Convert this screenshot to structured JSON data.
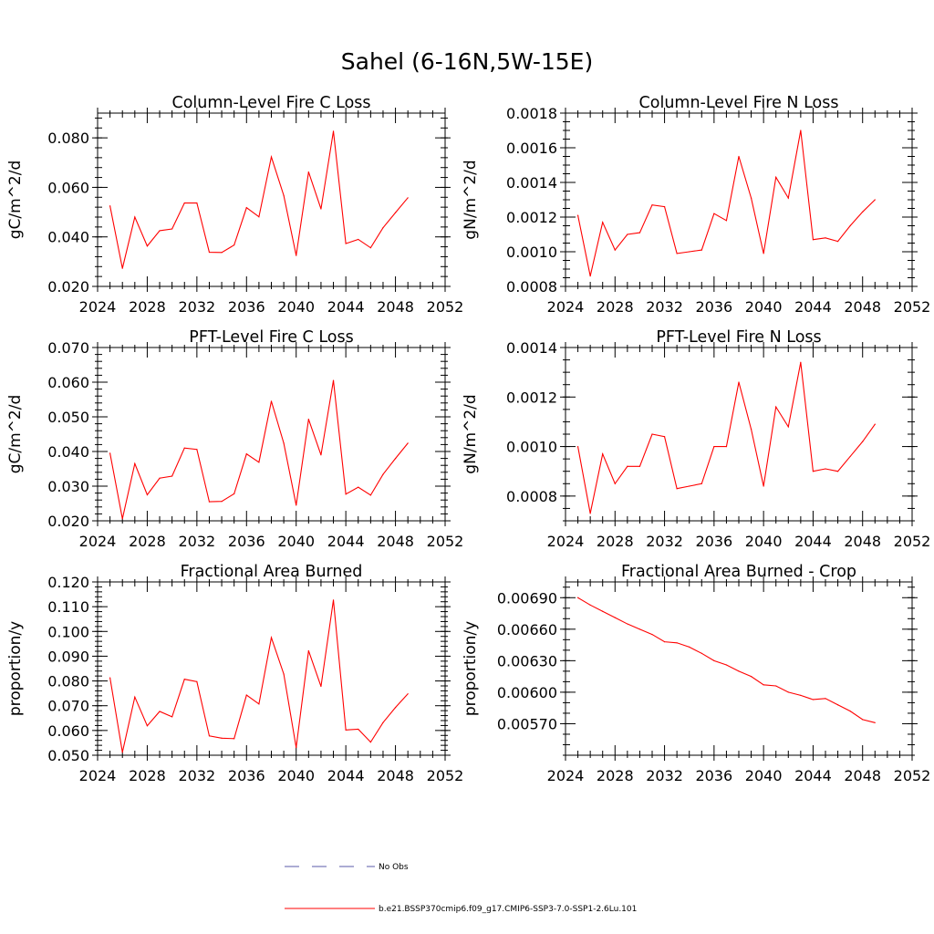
{
  "figure": {
    "title": "Sahel (6-16N,5W-15E)"
  },
  "legend": {
    "entries": [
      {
        "label": "No Obs",
        "color": "#5a5aa8",
        "style": "dashed"
      },
      {
        "label": "b.e21.BSSP370cmip6.f09_g17.CMIP6-SSP3-7.0-SSP1-2.6Lu.101",
        "color": "#ff0000",
        "style": "solid"
      }
    ]
  },
  "chart_data": [
    {
      "type": "line",
      "title": "Column-Level Fire C Loss",
      "ylabel": "gC/m^2/d",
      "xlim": [
        2024,
        2052
      ],
      "ylim": [
        0.02,
        0.09
      ],
      "xticks": [
        2024,
        2028,
        2032,
        2036,
        2040,
        2044,
        2048,
        2052
      ],
      "yticks": [
        0.02,
        0.04,
        0.06,
        0.08
      ],
      "ytick_labels": [
        "0.020",
        "0.040",
        "0.060",
        "0.080"
      ],
      "y_minor_step": 0.004,
      "series": [
        {
          "name": "b.e21.BSSP370cmip6.f09_g17.CMIP6-SSP3-7.0-SSP1-2.6Lu.101",
          "color": "#ff0000",
          "x": [
            2025,
            2026,
            2027,
            2028,
            2029,
            2030,
            2031,
            2032,
            2033,
            2034,
            2035,
            2036,
            2037,
            2038,
            2039,
            2040,
            2041,
            2042,
            2043,
            2044,
            2045,
            2046,
            2047,
            2048,
            2049
          ],
          "y": [
            0.0525,
            0.0273,
            0.048,
            0.0363,
            0.0425,
            0.0432,
            0.0537,
            0.0537,
            0.0338,
            0.0337,
            0.0367,
            0.0518,
            0.0481,
            0.0723,
            0.0567,
            0.0325,
            0.0662,
            0.0513,
            0.0827,
            0.0373,
            0.039,
            0.0356,
            0.0437,
            0.0498,
            0.0558
          ]
        }
      ]
    },
    {
      "type": "line",
      "title": "Column-Level Fire N Loss",
      "ylabel": "gN/m^2/d",
      "xlim": [
        2024,
        2052
      ],
      "ylim": [
        0.0008,
        0.0018
      ],
      "xticks": [
        2024,
        2028,
        2032,
        2036,
        2040,
        2044,
        2048,
        2052
      ],
      "yticks": [
        0.0008,
        0.001,
        0.0012,
        0.0014,
        0.0016,
        0.0018
      ],
      "ytick_labels": [
        "0.0008",
        "0.0010",
        "0.0012",
        "0.0014",
        "0.0016",
        "0.0018"
      ],
      "y_minor_step": 5e-05,
      "series": [
        {
          "name": "b.e21.BSSP370cmip6.f09_g17.CMIP6-SSP3-7.0-SSP1-2.6Lu.101",
          "color": "#ff0000",
          "x": [
            2025,
            2026,
            2027,
            2028,
            2029,
            2030,
            2031,
            2032,
            2033,
            2034,
            2035,
            2036,
            2037,
            2038,
            2039,
            2040,
            2041,
            2042,
            2043,
            2044,
            2045,
            2046,
            2047,
            2048,
            2049
          ],
          "y": [
            0.00121,
            0.00086,
            0.00117,
            0.00101,
            0.0011,
            0.00111,
            0.00127,
            0.00126,
            0.00099,
            0.001,
            0.00101,
            0.00122,
            0.00118,
            0.00155,
            0.00131,
            0.00099,
            0.00143,
            0.00131,
            0.0017,
            0.00107,
            0.00108,
            0.00106,
            0.00115,
            0.00123,
            0.0013
          ]
        }
      ]
    },
    {
      "type": "line",
      "title": "PFT-Level Fire C Loss",
      "ylabel": "gC/m^2/d",
      "xlim": [
        2024,
        2052
      ],
      "ylim": [
        0.02,
        0.07
      ],
      "xticks": [
        2024,
        2028,
        2032,
        2036,
        2040,
        2044,
        2048,
        2052
      ],
      "yticks": [
        0.02,
        0.03,
        0.04,
        0.05,
        0.06,
        0.07
      ],
      "ytick_labels": [
        "0.020",
        "0.030",
        "0.040",
        "0.050",
        "0.060",
        "0.070"
      ],
      "y_minor_step": 0.002,
      "series": [
        {
          "name": "b.e21.BSSP370cmip6.f09_g17.CMIP6-SSP3-7.0-SSP1-2.6Lu.101",
          "color": "#ff0000",
          "x": [
            2025,
            2026,
            2027,
            2028,
            2029,
            2030,
            2031,
            2032,
            2033,
            2034,
            2035,
            2036,
            2037,
            2038,
            2039,
            2040,
            2041,
            2042,
            2043,
            2044,
            2045,
            2046,
            2047,
            2048,
            2049
          ],
          "y": [
            0.0395,
            0.0206,
            0.0365,
            0.0275,
            0.0323,
            0.0329,
            0.041,
            0.0406,
            0.0255,
            0.0256,
            0.0278,
            0.0393,
            0.0369,
            0.0545,
            0.0424,
            0.0245,
            0.0493,
            0.039,
            0.0605,
            0.0277,
            0.0297,
            0.0274,
            0.0334,
            0.038,
            0.0424
          ]
        }
      ]
    },
    {
      "type": "line",
      "title": "PFT-Level Fire N Loss",
      "ylabel": "gN/m^2/d",
      "xlim": [
        2024,
        2052
      ],
      "ylim": [
        0.0007,
        0.0014
      ],
      "xticks": [
        2024,
        2028,
        2032,
        2036,
        2040,
        2044,
        2048,
        2052
      ],
      "yticks": [
        0.0008,
        0.001,
        0.0012,
        0.0014
      ],
      "ytick_labels": [
        "0.0008",
        "0.0010",
        "0.0012",
        "0.0014"
      ],
      "y_minor_step": 5e-05,
      "series": [
        {
          "name": "b.e21.BSSP370cmip6.f09_g17.CMIP6-SSP3-7.0-SSP1-2.6Lu.101",
          "color": "#ff0000",
          "x": [
            2025,
            2026,
            2027,
            2028,
            2029,
            2030,
            2031,
            2032,
            2033,
            2034,
            2035,
            2036,
            2037,
            2038,
            2039,
            2040,
            2041,
            2042,
            2043,
            2044,
            2045,
            2046,
            2047,
            2048,
            2049
          ],
          "y": [
            0.001,
            0.00073,
            0.00097,
            0.00085,
            0.00092,
            0.00092,
            0.00105,
            0.00104,
            0.00083,
            0.00084,
            0.00085,
            0.001,
            0.001,
            0.00126,
            0.00107,
            0.00084,
            0.00116,
            0.00108,
            0.00134,
            0.0009,
            0.00091,
            0.0009,
            0.00096,
            0.00102,
            0.00109
          ]
        }
      ]
    },
    {
      "type": "line",
      "title": "Fractional Area Burned",
      "ylabel": "proportion/y",
      "xlim": [
        2024,
        2052
      ],
      "ylim": [
        0.05,
        0.12
      ],
      "xticks": [
        2024,
        2028,
        2032,
        2036,
        2040,
        2044,
        2048,
        2052
      ],
      "yticks": [
        0.05,
        0.06,
        0.07,
        0.08,
        0.09,
        0.1,
        0.11,
        0.12
      ],
      "ytick_labels": [
        "0.050",
        "0.060",
        "0.070",
        "0.080",
        "0.090",
        "0.100",
        "0.110",
        "0.120"
      ],
      "y_minor_step": 0.002,
      "series": [
        {
          "name": "b.e21.BSSP370cmip6.f09_g17.CMIP6-SSP3-7.0-SSP1-2.6Lu.101",
          "color": "#ff0000",
          "x": [
            2025,
            2026,
            2027,
            2028,
            2029,
            2030,
            2031,
            2032,
            2033,
            2034,
            2035,
            2036,
            2037,
            2038,
            2039,
            2040,
            2041,
            2042,
            2043,
            2044,
            2045,
            2046,
            2047,
            2048,
            2049
          ],
          "y": [
            0.0813,
            0.0512,
            0.0735,
            0.0619,
            0.0677,
            0.0655,
            0.0807,
            0.0797,
            0.0578,
            0.0569,
            0.0567,
            0.0743,
            0.0707,
            0.0975,
            0.0828,
            0.0531,
            0.0922,
            0.0778,
            0.1127,
            0.0602,
            0.0605,
            0.0553,
            0.0632,
            0.0693,
            0.0748
          ]
        }
      ]
    },
    {
      "type": "line",
      "title": "Fractional Area Burned - Crop",
      "ylabel": "proportion/y",
      "xlim": [
        2024,
        2052
      ],
      "ylim": [
        0.0054,
        0.00705
      ],
      "xticks": [
        2024,
        2028,
        2032,
        2036,
        2040,
        2044,
        2048,
        2052
      ],
      "yticks": [
        0.0057,
        0.006,
        0.0063,
        0.0066,
        0.0069
      ],
      "ytick_labels": [
        "0.00570",
        "0.00600",
        "0.00630",
        "0.00660",
        "0.00690"
      ],
      "y_minor_step": 0.0001,
      "series": [
        {
          "name": "b.e21.BSSP370cmip6.f09_g17.CMIP6-SSP3-7.0-SSP1-2.6Lu.101",
          "color": "#ff0000",
          "x": [
            2025,
            2026,
            2027,
            2028,
            2029,
            2030,
            2031,
            2032,
            2033,
            2034,
            2035,
            2036,
            2037,
            2038,
            2039,
            2040,
            2041,
            2042,
            2043,
            2044,
            2045,
            2046,
            2047,
            2048,
            2049
          ],
          "y": [
            0.0069,
            0.00683,
            0.00677,
            0.00671,
            0.00665,
            0.0066,
            0.00655,
            0.00648,
            0.00647,
            0.00643,
            0.00637,
            0.0063,
            0.00626,
            0.0062,
            0.00615,
            0.00607,
            0.00606,
            0.006,
            0.00597,
            0.00593,
            0.00594,
            0.00588,
            0.00582,
            0.00574,
            0.00571
          ]
        }
      ]
    }
  ]
}
